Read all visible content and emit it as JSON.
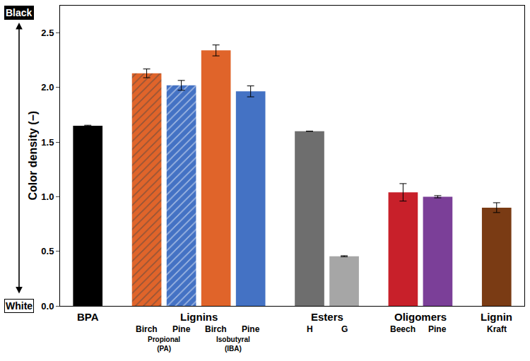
{
  "chart_data": {
    "type": "bar",
    "y_label": "Color density (−)",
    "scale_labels": {
      "top": "Black",
      "bottom": "White"
    },
    "categories": [
      null,
      "Birch",
      "Pine",
      "Birch",
      "Pine",
      "H",
      "G",
      "Beech",
      "Pine",
      "Kraft"
    ],
    "groups": [
      {
        "label": "BPA",
        "size": 1
      },
      {
        "label": "Lignins",
        "size": 4
      },
      {
        "label": "Esters",
        "size": 2
      },
      {
        "label": "Oligomers",
        "size": 2
      },
      {
        "label": "Lignin",
        "size": 1
      }
    ],
    "subgroups": [
      {
        "label": "Propional (PA)",
        "first": 1,
        "size": 2
      },
      {
        "label": "Isobutyral (IBA)",
        "first": 3,
        "size": 2
      }
    ],
    "series": [
      {
        "marker": "hatched",
        "values": [
          null,
          2.13,
          2.02,
          null,
          null,
          null,
          null,
          null,
          null,
          null
        ],
        "errors": [
          null,
          0.04,
          0.045,
          null,
          null,
          null,
          null,
          null,
          null,
          null
        ],
        "colors": [
          null,
          "#e0642a",
          "#4472c4",
          null,
          null,
          null,
          null,
          null,
          null,
          null
        ]
      },
      {
        "marker": "solid",
        "values": [
          1.65,
          null,
          null,
          2.34,
          1.965,
          1.6,
          0.455,
          1.04,
          1.0,
          0.9
        ],
        "errors": [
          0.005,
          null,
          null,
          0.05,
          0.05,
          0,
          0.005,
          0.08,
          0.01,
          0.045
        ],
        "colors": [
          "#000000",
          null,
          null,
          "#e0642a",
          "#4472c4",
          "#6e6e6e",
          "#a6a6a6",
          "#c8202a",
          "#7b3f98",
          "#7a3b14"
        ]
      }
    ],
    "ylim": [
      0,
      2.75
    ],
    "yticks": [
      {
        "value": 0,
        "label": "0.0"
      },
      {
        "value": 0.5,
        "label": "0.5"
      },
      {
        "value": 1,
        "label": "1.0"
      },
      {
        "value": 1.5,
        "label": "1.5"
      },
      {
        "value": 2,
        "label": "2.0"
      },
      {
        "value": 2.5,
        "label": "2.5"
      }
    ],
    "grid": false
  }
}
